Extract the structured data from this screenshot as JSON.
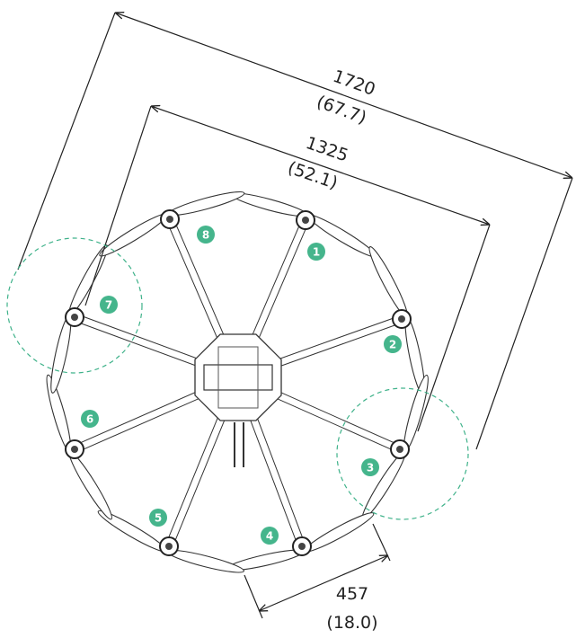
{
  "dimensions": [
    {
      "mm": "1720",
      "inch": "(67.7)"
    },
    {
      "mm": "1325",
      "inch": "(52.1)"
    },
    {
      "mm": "457",
      "inch": "(18.0)"
    }
  ],
  "motors": [
    "1",
    "2",
    "3",
    "4",
    "5",
    "6",
    "7",
    "8"
  ]
}
